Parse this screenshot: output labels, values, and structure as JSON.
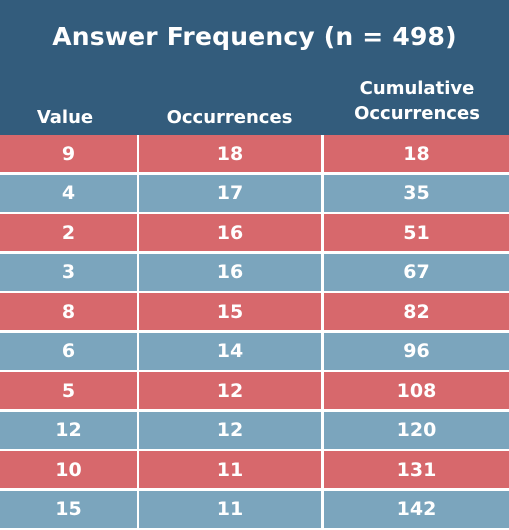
{
  "colors": {
    "header": "#335c7c",
    "row_red": "#d7686c",
    "row_blue": "#7ba5bd"
  },
  "chart_data": {
    "type": "table",
    "title": "Answer Frequency (n = 498)",
    "columns": [
      "Value",
      "Occurrences",
      "Cumulative Occurrences"
    ],
    "column_lines": [
      [
        "Value"
      ],
      [
        "Occurrences"
      ],
      [
        "Cumulative",
        "Occurrences"
      ]
    ],
    "rows": [
      [
        "9",
        "18",
        "18"
      ],
      [
        "4",
        "17",
        "35"
      ],
      [
        "2",
        "16",
        "51"
      ],
      [
        "3",
        "16",
        "67"
      ],
      [
        "8",
        "15",
        "82"
      ],
      [
        "6",
        "14",
        "96"
      ],
      [
        "5",
        "12",
        "108"
      ],
      [
        "12",
        "12",
        "120"
      ],
      [
        "10",
        "11",
        "131"
      ],
      [
        "15",
        "11",
        "142"
      ]
    ]
  }
}
